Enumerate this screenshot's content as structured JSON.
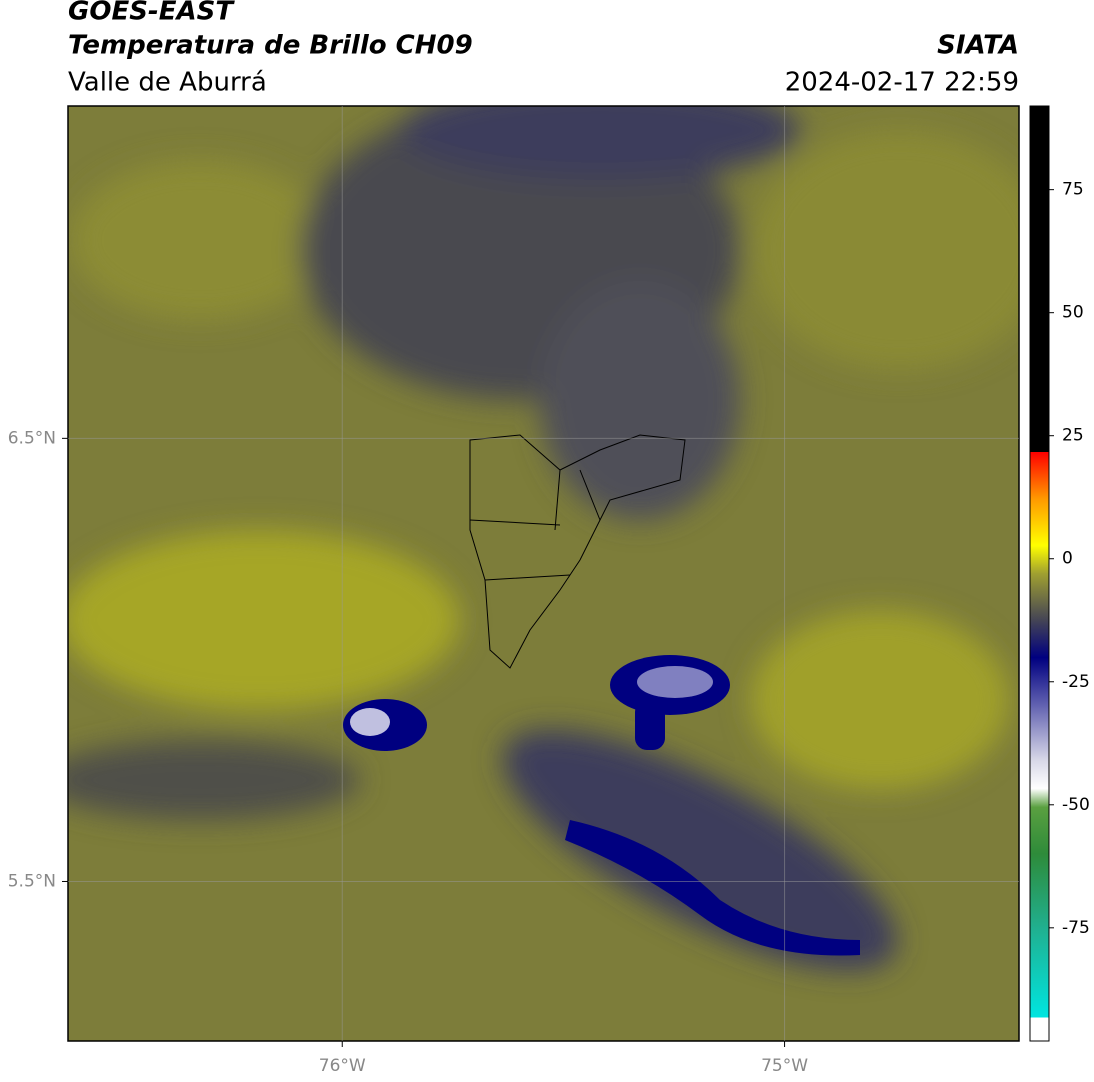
{
  "header": {
    "title": "GOES-EAST",
    "subtitle": "Temperatura de Brillo CH09",
    "region": "Valle de Aburrá",
    "source": "SIATA",
    "datetime": "2024-02-17 22:59"
  },
  "map": {
    "xlim": [
      -76.62,
      -74.47
    ],
    "ylim": [
      5.14,
      7.25
    ],
    "xticks": [
      {
        "value": -76,
        "label": "76°W"
      },
      {
        "value": -75,
        "label": "75°W"
      }
    ],
    "yticks": [
      {
        "value": 6.5,
        "label": "6.5°N"
      },
      {
        "value": 5.5,
        "label": "5.5°N"
      }
    ],
    "grid": true
  },
  "colorbar": {
    "lim": [
      -98,
      92
    ],
    "ticks": [
      75,
      50,
      25,
      0,
      -25,
      -50,
      -75
    ]
  }
}
